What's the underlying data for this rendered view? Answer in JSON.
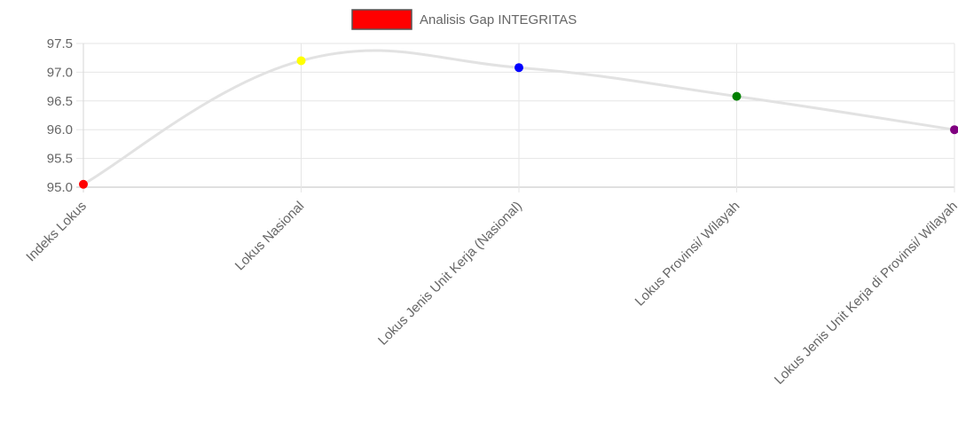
{
  "chart_data": {
    "type": "line",
    "categories": [
      "Indeks Lokus",
      "Lokus Nasional",
      "Lokus Jenis Unit Kerja (Nasional)",
      "Lokus Provinsi/ Wilayah",
      "Lokus Jenis Unit Kerja di Provinsi/ Wilayah"
    ],
    "series": [
      {
        "name": "Analisis Gap INTEGRITAS",
        "values": [
          95.05,
          97.2,
          97.08,
          96.58,
          96.0
        ],
        "line_color": "#e2e2e2",
        "legend_color": "#ff0000",
        "point_colors": [
          "#ff0000",
          "#ffff00",
          "#0000ff",
          "#008000",
          "#800080"
        ]
      }
    ],
    "y_ticks": [
      "97.5",
      "97.0",
      "96.5",
      "96.0",
      "95.5",
      "95.0"
    ],
    "ylim": [
      95.0,
      97.5
    ],
    "grid": true,
    "legend_position": "top-center",
    "title": "",
    "xlabel": "",
    "ylabel": ""
  }
}
